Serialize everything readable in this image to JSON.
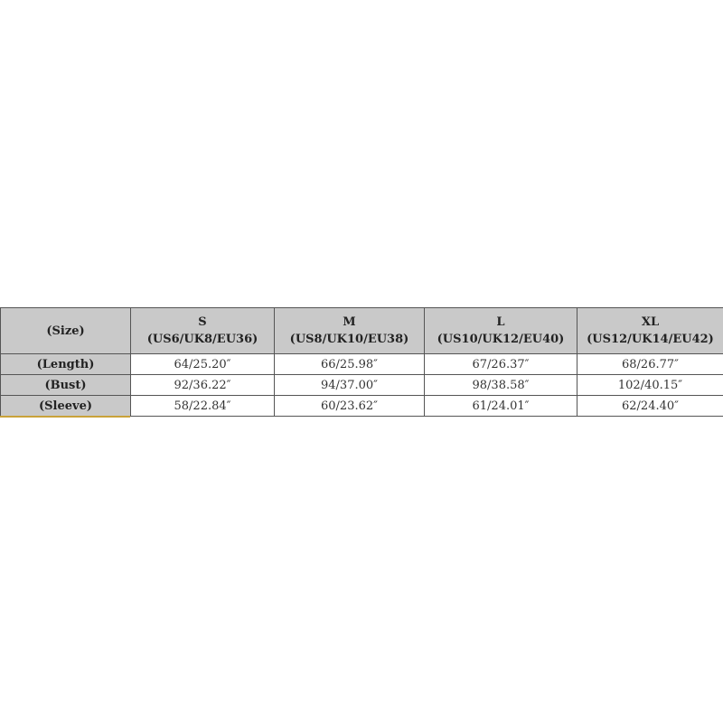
{
  "table": {
    "corner": "(Size)",
    "sizes": [
      {
        "size": "S",
        "region": "(US6/UK8/EU36)"
      },
      {
        "size": "M",
        "region": "(US8/UK10/EU38)"
      },
      {
        "size": "L",
        "region": "(US10/UK12/EU40)"
      },
      {
        "size": "XL",
        "region": "(US12/UK14/EU42)"
      }
    ],
    "rows": [
      {
        "label": "(Length)",
        "values": [
          "64/25.20″",
          "66/25.98″",
          "67/26.37″",
          "68/26.77″"
        ]
      },
      {
        "label": "(Bust)",
        "values": [
          "92/36.22″",
          "94/37.00″",
          "98/38.58″",
          "102/40.15″"
        ]
      },
      {
        "label": "(Sleeve)",
        "values": [
          "58/22.84″",
          "60/23.62″",
          "61/24.01″",
          "62/24.40″"
        ]
      }
    ]
  },
  "colors": {
    "header_bg": "#c9c9c9",
    "accent_line": "#c9a23a"
  }
}
